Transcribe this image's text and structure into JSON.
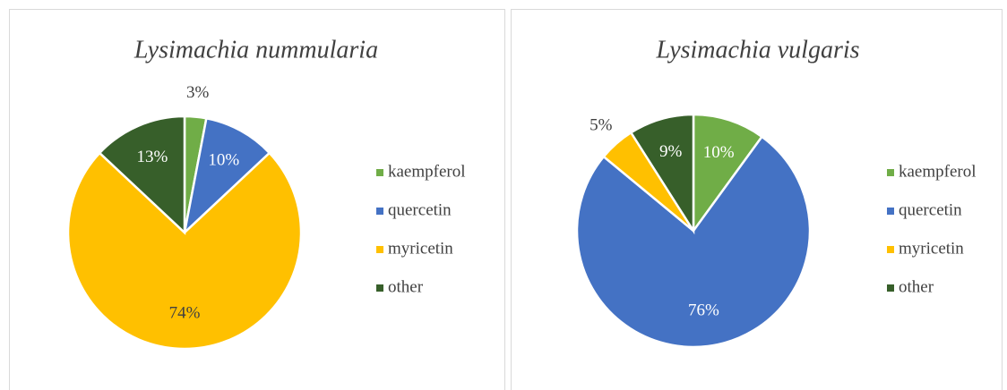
{
  "chart_data": [
    {
      "type": "pie",
      "title": "Lysimachia nummularia",
      "categories": [
        "kaempferol",
        "quercetin",
        "myricetin",
        "other"
      ],
      "values": [
        3,
        10,
        74,
        13
      ],
      "value_labels": [
        "3%",
        "10%",
        "74%",
        "13%"
      ],
      "colors": [
        "#70ad47",
        "#4472c4",
        "#ffc000",
        "#375f2a"
      ],
      "legend": "right"
    },
    {
      "type": "pie",
      "title": "Lysimachia vulgaris",
      "categories": [
        "kaempferol",
        "quercetin",
        "myricetin",
        "other"
      ],
      "values": [
        10,
        76,
        5,
        9
      ],
      "value_labels": [
        "10%",
        "76%",
        "5%",
        "9%"
      ],
      "colors": [
        "#70ad47",
        "#4472c4",
        "#ffc000",
        "#375f2a"
      ],
      "legend": "right"
    }
  ]
}
